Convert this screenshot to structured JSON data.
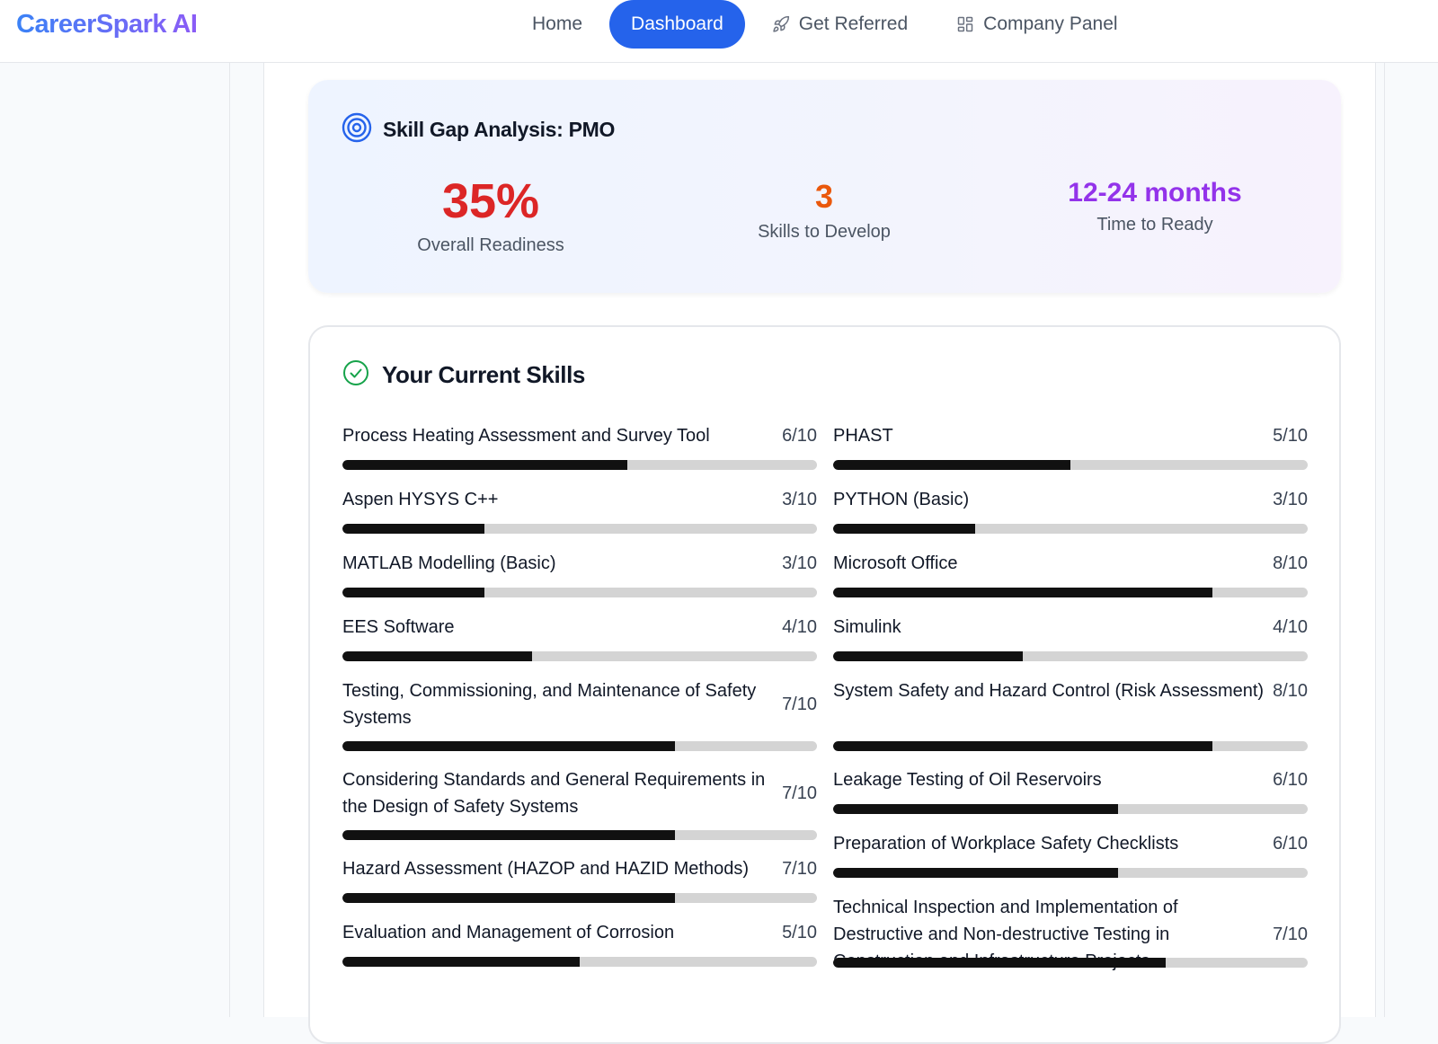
{
  "brand": "CareerSpark AI",
  "nav": {
    "home": "Home",
    "dashboard": "Dashboard",
    "get_referred": "Get Referred",
    "company_panel": "Company Panel"
  },
  "gap_analysis": {
    "title": "Skill Gap Analysis: PMO",
    "readiness": {
      "value": "35%",
      "label": "Overall Readiness",
      "color": "#dc2626"
    },
    "skills_to_develop": {
      "value": "3",
      "label": "Skills to Develop",
      "color": "#ea580c"
    },
    "time_to_ready": {
      "value": "12-24 months",
      "label": "Time to Ready",
      "color": "#9333ea"
    }
  },
  "current_skills": {
    "title": "Your Current Skills",
    "left": [
      {
        "name": "Process Heating Assessment and Survey Tool",
        "score": "6/10",
        "level": 0.6
      },
      {
        "name": "Aspen HYSYS C++",
        "score": "3/10",
        "level": 0.3
      },
      {
        "name": "MATLAB Modelling (Basic)",
        "score": "3/10",
        "level": 0.3
      },
      {
        "name": "EES Software",
        "score": "4/10",
        "level": 0.4
      },
      {
        "name": "Testing, Commissioning, and Maintenance of Safety Systems",
        "score": "7/10",
        "level": 0.7
      },
      {
        "name": "Considering Standards and General Requirements in the Design of Safety Systems",
        "score": "7/10",
        "level": 0.7
      },
      {
        "name": "Hazard Assessment (HAZOP and HAZID Methods)",
        "score": "7/10",
        "level": 0.7
      },
      {
        "name": "Evaluation and Management of Corrosion",
        "score": "5/10",
        "level": 0.5
      }
    ],
    "right": [
      {
        "name": "PHAST",
        "score": "5/10",
        "level": 0.5
      },
      {
        "name": "PYTHON (Basic)",
        "score": "3/10",
        "level": 0.3
      },
      {
        "name": "Microsoft Office",
        "score": "8/10",
        "level": 0.8
      },
      {
        "name": "Simulink",
        "score": "4/10",
        "level": 0.4
      },
      {
        "name": "System Safety and Hazard Control (Risk Assessment)",
        "score": "8/10",
        "level": 0.8
      },
      {
        "name": "Leakage Testing of Oil Reservoirs",
        "score": "6/10",
        "level": 0.6
      },
      {
        "name": "Preparation of Workplace Safety Checklists",
        "score": "6/10",
        "level": 0.6
      },
      {
        "name": "Technical Inspection and Implementation of Destructive and Non-destructive Testing in Construction and Infrastructure Projects",
        "score": "7/10",
        "level": 0.7
      }
    ]
  }
}
